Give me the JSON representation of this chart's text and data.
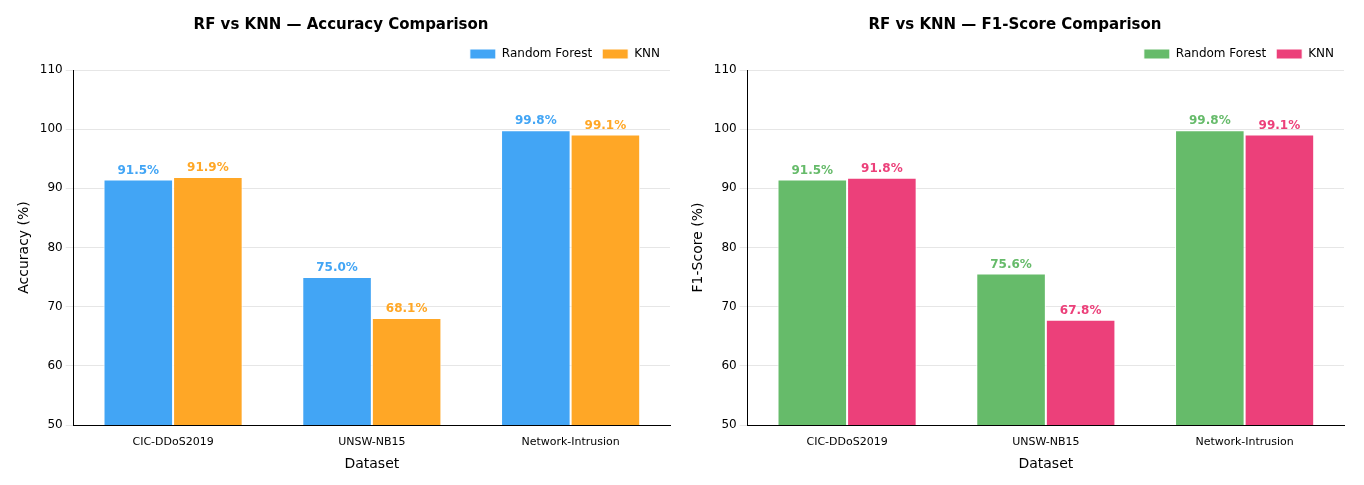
{
  "chart_data": [
    {
      "type": "bar",
      "title": "RF vs KNN — Accuracy Comparison",
      "xlabel": "Dataset",
      "ylabel": "Accuracy (%)",
      "categories": [
        "CIC-DDoS2019",
        "UNSW-NB15",
        "Network-Intrusion"
      ],
      "series": [
        {
          "name": "Random Forest",
          "color": "#42a5f5",
          "values": [
            91.5,
            75.0,
            99.8
          ],
          "value_labels": [
            "91.5%",
            "75.0%",
            "99.8%"
          ]
        },
        {
          "name": "KNN",
          "color": "#ffa726",
          "values": [
            91.9,
            68.1,
            99.1
          ],
          "value_labels": [
            "91.9%",
            "68.1%",
            "99.1%"
          ]
        }
      ],
      "ylim": [
        50,
        110
      ],
      "yticks": [
        50,
        60,
        70,
        80,
        90,
        100,
        110
      ],
      "grid": "y",
      "legend": "top right"
    },
    {
      "type": "bar",
      "title": "RF vs KNN — F1-Score Comparison",
      "xlabel": "Dataset",
      "ylabel": "F1-Score (%)",
      "categories": [
        "CIC-DDoS2019",
        "UNSW-NB15",
        "Network-Intrusion"
      ],
      "series": [
        {
          "name": "Random Forest",
          "color": "#66bb6a",
          "values": [
            91.5,
            75.6,
            99.8
          ],
          "value_labels": [
            "91.5%",
            "75.6%",
            "99.8%"
          ]
        },
        {
          "name": "KNN",
          "color": "#ec407a",
          "values": [
            91.8,
            67.8,
            99.1
          ],
          "value_labels": [
            "91.8%",
            "67.8%",
            "99.1%"
          ]
        }
      ],
      "ylim": [
        50,
        110
      ],
      "yticks": [
        50,
        60,
        70,
        80,
        90,
        100,
        110
      ],
      "grid": "y",
      "legend": "top right"
    }
  ]
}
